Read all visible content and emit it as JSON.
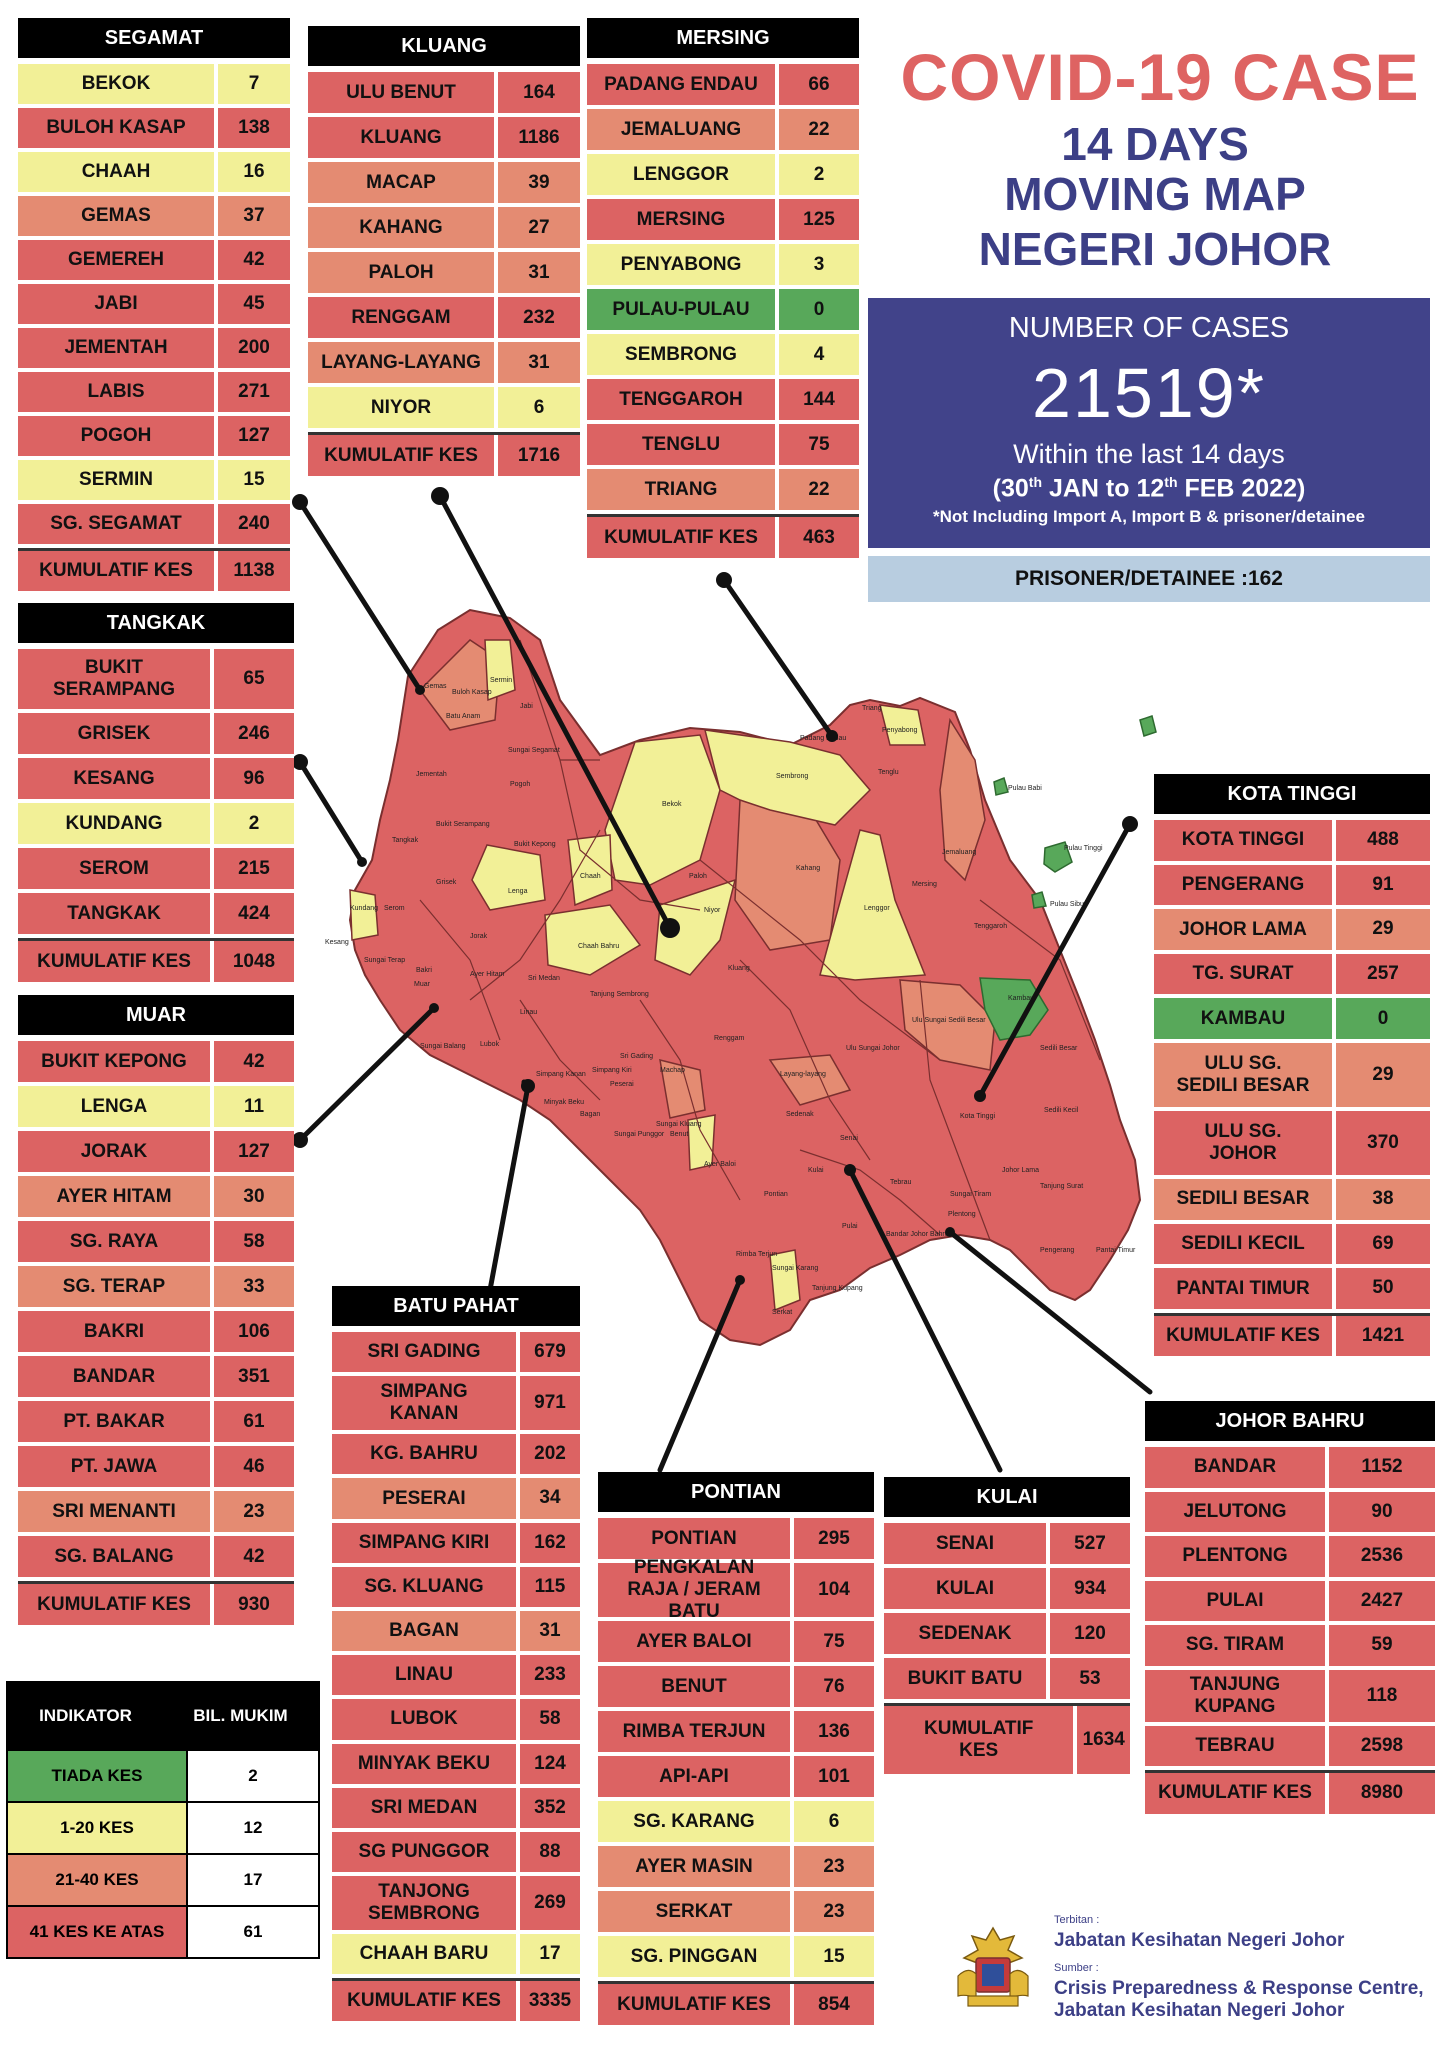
{
  "title": {
    "main": "COVID-19 CASE",
    "line2": "14 DAYS",
    "line3": "MOVING MAP",
    "line4": "NEGERI JOHOR"
  },
  "summary": {
    "label": "NUMBER OF CASES",
    "total": "21519*",
    "period": "Within the last 14 days",
    "start_day": "30",
    "start_suffix": "th",
    "start_rest": "JAN to 12",
    "end_suffix": "th",
    "end_rest": "FEB 2022)",
    "open_paren": "(",
    "note": "*Not Including Import A, Import B & prisoner/detainee",
    "prisoner": "PRISONER/DETAINEE :162"
  },
  "colors": {
    "none": "#58a85a",
    "low": "#f2f097",
    "mid": "#e48b72",
    "high": "#dc6363",
    "title_red": "#de6362",
    "title_blue": "#3c3f86",
    "box_blue": "#41438a",
    "prisoner_bg": "#b8cde0"
  },
  "districts": [
    {
      "id": "segamat",
      "name": "SEGAMAT",
      "total_label": "KUMULATIF KES",
      "total": "1138",
      "rows": [
        [
          "BEKOK",
          "7",
          "low"
        ],
        [
          "BULOH KASAP",
          "138",
          "high"
        ],
        [
          "CHAAH",
          "16",
          "low"
        ],
        [
          "GEMAS",
          "37",
          "mid"
        ],
        [
          "GEMEREH",
          "42",
          "high"
        ],
        [
          "JABI",
          "45",
          "high"
        ],
        [
          "JEMENTAH",
          "200",
          "high"
        ],
        [
          "LABIS",
          "271",
          "high"
        ],
        [
          "POGOH",
          "127",
          "high"
        ],
        [
          "SERMIN",
          "15",
          "low"
        ],
        [
          "SG. SEGAMAT",
          "240",
          "high"
        ]
      ]
    },
    {
      "id": "kluang",
      "name": "KLUANG",
      "total_label": "KUMULATIF KES",
      "total": "1716",
      "rows": [
        [
          "ULU BENUT",
          "164",
          "high"
        ],
        [
          "KLUANG",
          "1186",
          "high"
        ],
        [
          "MACAP",
          "39",
          "mid"
        ],
        [
          "KAHANG",
          "27",
          "mid"
        ],
        [
          "PALOH",
          "31",
          "mid"
        ],
        [
          "RENGGAM",
          "232",
          "high"
        ],
        [
          "LAYANG-LAYANG",
          "31",
          "mid"
        ],
        [
          "NIYOR",
          "6",
          "low"
        ]
      ]
    },
    {
      "id": "mersing",
      "name": "MERSING",
      "total_label": "KUMULATIF KES",
      "total": "463",
      "rows": [
        [
          "PADANG ENDAU",
          "66",
          "high"
        ],
        [
          "JEMALUANG",
          "22",
          "mid"
        ],
        [
          "LENGGOR",
          "2",
          "low"
        ],
        [
          "MERSING",
          "125",
          "high"
        ],
        [
          "PENYABONG",
          "3",
          "low"
        ],
        [
          "PULAU-PULAU",
          "0",
          "none"
        ],
        [
          "SEMBRONG",
          "4",
          "low"
        ],
        [
          "TENGGAROH",
          "144",
          "high"
        ],
        [
          "TENGLU",
          "75",
          "high"
        ],
        [
          "TRIANG",
          "22",
          "mid"
        ]
      ]
    },
    {
      "id": "tangkak",
      "name": "TANGKAK",
      "total_label": "KUMULATIF KES",
      "total": "1048",
      "rows": [
        [
          "BUKIT SERAMPANG",
          "65",
          "high"
        ],
        [
          "GRISEK",
          "246",
          "high"
        ],
        [
          "KESANG",
          "96",
          "high"
        ],
        [
          "KUNDANG",
          "2",
          "low"
        ],
        [
          "SEROM",
          "215",
          "high"
        ],
        [
          "TANGKAK",
          "424",
          "high"
        ]
      ]
    },
    {
      "id": "muar",
      "name": "MUAR",
      "total_label": "KUMULATIF KES",
      "total": "930",
      "rows": [
        [
          "BUKIT KEPONG",
          "42",
          "high"
        ],
        [
          "LENGA",
          "11",
          "low"
        ],
        [
          "JORAK",
          "127",
          "high"
        ],
        [
          "AYER HITAM",
          "30",
          "mid"
        ],
        [
          "SG. RAYA",
          "58",
          "high"
        ],
        [
          "SG. TERAP",
          "33",
          "mid"
        ],
        [
          "BAKRI",
          "106",
          "high"
        ],
        [
          "BANDAR",
          "351",
          "high"
        ],
        [
          "PT. BAKAR",
          "61",
          "high"
        ],
        [
          "PT. JAWA",
          "46",
          "high"
        ],
        [
          "SRI MENANTI",
          "23",
          "mid"
        ],
        [
          "SG. BALANG",
          "42",
          "high"
        ]
      ]
    },
    {
      "id": "kotatinggi",
      "name": "KOTA TINGGI",
      "total_label": "KUMULATIF KES",
      "total": "1421",
      "rows": [
        [
          "KOTA TINGGI",
          "488",
          "high"
        ],
        [
          "PENGERANG",
          "91",
          "high"
        ],
        [
          "JOHOR LAMA",
          "29",
          "mid"
        ],
        [
          "TG. SURAT",
          "257",
          "high"
        ],
        [
          "KAMBAU",
          "0",
          "none"
        ],
        [
          "ULU SG. SEDILI BESAR",
          "29",
          "mid"
        ],
        [
          "ULU  SG. JOHOR",
          "370",
          "high"
        ],
        [
          "SEDILI BESAR",
          "38",
          "mid"
        ],
        [
          "SEDILI KECIL",
          "69",
          "high"
        ],
        [
          "PANTAI TIMUR",
          "50",
          "high"
        ]
      ]
    },
    {
      "id": "batupahat",
      "name": "BATU PAHAT",
      "total_label": "KUMULATIF KES",
      "total": "3335",
      "rows": [
        [
          "SRI GADING",
          "679",
          "high"
        ],
        [
          "SIMPANG KANAN",
          "971",
          "high"
        ],
        [
          "KG. BAHRU",
          "202",
          "high"
        ],
        [
          "PESERAI",
          "34",
          "mid"
        ],
        [
          "SIMPANG KIRI",
          "162",
          "high"
        ],
        [
          "SG. KLUANG",
          "115",
          "high"
        ],
        [
          "BAGAN",
          "31",
          "mid"
        ],
        [
          "LINAU",
          "233",
          "high"
        ],
        [
          "LUBOK",
          "58",
          "high"
        ],
        [
          "MINYAK BEKU",
          "124",
          "high"
        ],
        [
          "SRI MEDAN",
          "352",
          "high"
        ],
        [
          "SG PUNGGOR",
          "88",
          "high"
        ],
        [
          "TANJONG SEMBRONG",
          "269",
          "high"
        ],
        [
          "CHAAH BARU",
          "17",
          "low"
        ]
      ]
    },
    {
      "id": "pontian",
      "name": "PONTIAN",
      "total_label": "KUMULATIF KES",
      "total": "854",
      "rows": [
        [
          "PONTIAN",
          "295",
          "high"
        ],
        [
          "PENGKALAN RAJA / JERAM BATU",
          "104",
          "high"
        ],
        [
          "AYER BALOI",
          "75",
          "high"
        ],
        [
          "BENUT",
          "76",
          "high"
        ],
        [
          "RIMBA TERJUN",
          "136",
          "high"
        ],
        [
          "API-API",
          "101",
          "high"
        ],
        [
          "SG. KARANG",
          "6",
          "low"
        ],
        [
          "AYER MASIN",
          "23",
          "mid"
        ],
        [
          "SERKAT",
          "23",
          "mid"
        ],
        [
          "SG. PINGGAN",
          "15",
          "low"
        ]
      ]
    },
    {
      "id": "kulai",
      "name": "KULAI",
      "total_label": "KUMULATIF KES",
      "total": "1634",
      "rows": [
        [
          "SENAI",
          "527",
          "high"
        ],
        [
          "KULAI",
          "934",
          "high"
        ],
        [
          "SEDENAK",
          "120",
          "high"
        ],
        [
          "BUKIT BATU",
          "53",
          "high"
        ]
      ]
    },
    {
      "id": "johorbahru",
      "name": "JOHOR BAHRU",
      "total_label": "KUMULATIF KES",
      "total": "8980",
      "rows": [
        [
          "BANDAR",
          "1152",
          "high"
        ],
        [
          "JELUTONG",
          "90",
          "high"
        ],
        [
          "PLENTONG",
          "2536",
          "high"
        ],
        [
          "PULAI",
          "2427",
          "high"
        ],
        [
          "SG. TIRAM",
          "59",
          "high"
        ],
        [
          "TANJUNG KUPANG",
          "118",
          "high"
        ],
        [
          "TEBRAU",
          "2598",
          "high"
        ]
      ]
    }
  ],
  "legend": {
    "head_left": "INDIKATOR",
    "head_right": "BIL. MUKIM",
    "rows": [
      [
        "TIADA KES",
        "2",
        "none"
      ],
      [
        "1-20 KES",
        "12",
        "low"
      ],
      [
        "21-40 KES",
        "17",
        "mid"
      ],
      [
        "41 KES KE ATAS",
        "61",
        "high"
      ]
    ]
  },
  "map_labels": [
    "Gemas",
    "Sermin",
    "Buloh Kasap",
    "Jabi",
    "Batu Anam",
    "Sungai Segamat",
    "Jementah",
    "Pogoh",
    "Bukit Serampang",
    "Bukit Kepong",
    "Tangkak",
    "Grisek",
    "Lenga",
    "Chaah",
    "Bekok",
    "Sembrong",
    "Paloh",
    "Kahang",
    "Niyor",
    "Lenggor",
    "Mersing",
    "Jemaluang",
    "Tenggaroh",
    "Tenglu",
    "Penyabong",
    "Triang",
    "Padang Endau",
    "Pulau Babi",
    "Pulau Tinggi",
    "Pulau Sibu",
    "Kambau",
    "Kundang",
    "Serom",
    "Kesang",
    "Sungai Terap",
    "Bakri",
    "Jorak",
    "Ayer Hitam",
    "Sri Medan",
    "Chaah Bahru",
    "Tanjung Sembrong",
    "Kluang",
    "Renggam",
    "Ulu Sungai Sedili Besar",
    "Sedili Besar",
    "Sedili Kecil",
    "Kota Tinggi",
    "Ulu Sungai Johor",
    "Johor Lama",
    "Tanjung Surat",
    "Pengerang",
    "Pantai Timur",
    "Layang-layang",
    "Machap",
    "Sedenak",
    "Senai",
    "Kulai",
    "Tebrau",
    "Sungai Tiram",
    "Plentong",
    "Bandar Johor Bahru",
    "Tanjung Kupang",
    "Pulai",
    "Pontian",
    "Ayer Baloi",
    "Benut",
    "Rimba Terjun",
    "Sungai Karang",
    "Serkat",
    "Muar",
    "Sungai Balang",
    "Lubok",
    "Simpang Kanan",
    "Simpang Kiri",
    "Minyak Beku",
    "Sri Gading",
    "Sungai Punggor",
    "Sungai Kluang",
    "Peserai",
    "Bagan",
    "Linau"
  ],
  "footer": {
    "published_label": "Terbitan :",
    "published_by": "Jabatan Kesihatan Negeri Johor",
    "source_label": "Sumber :",
    "source_line1": "Crisis Preparedness & Response Centre,",
    "source_line2": "Jabatan Kesihatan Negeri Johor"
  }
}
